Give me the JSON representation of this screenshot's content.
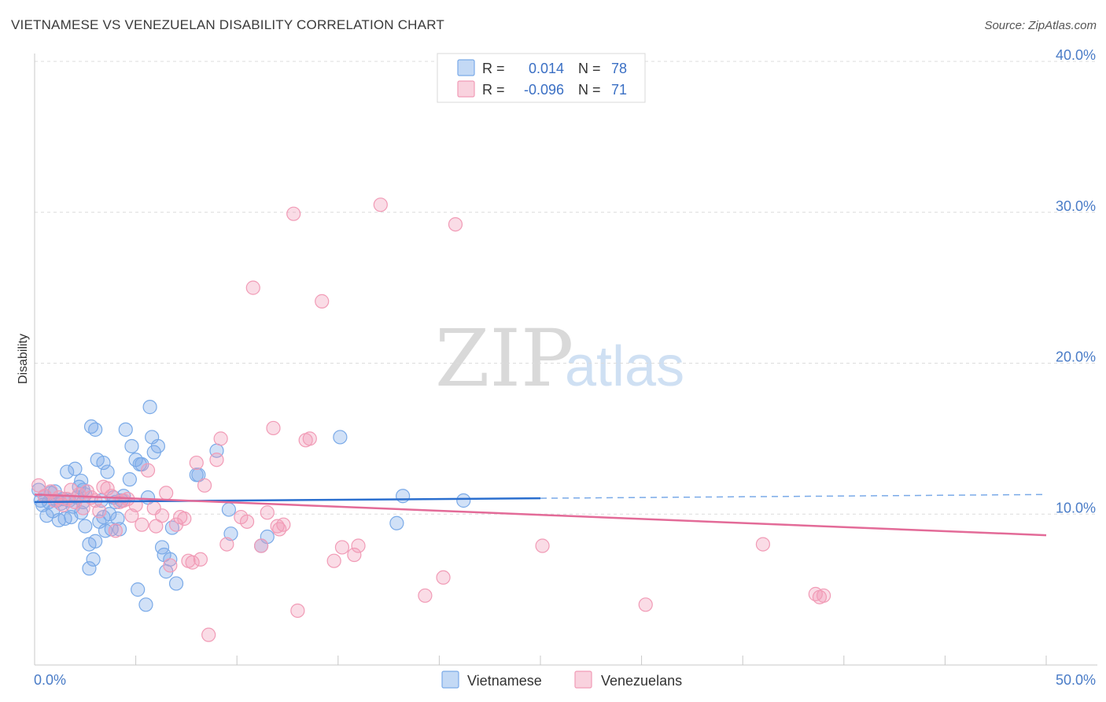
{
  "title": "VIETNAMESE VS VENEZUELAN DISABILITY CORRELATION CHART",
  "source": "Source: ZipAtlas.com",
  "chart_data": {
    "type": "scatter",
    "ylabel": "Disability",
    "xlim": [
      0,
      50
    ],
    "ylim": [
      0,
      40
    ],
    "x_ticks": [
      {
        "value": 0,
        "label": "0.0%"
      },
      {
        "value": 50,
        "label": "50.0%"
      }
    ],
    "y_ticks": [
      {
        "value": 10,
        "label": "10.0%"
      },
      {
        "value": 20,
        "label": "20.0%"
      },
      {
        "value": 30,
        "label": "30.0%"
      },
      {
        "value": 40,
        "label": "40.0%"
      }
    ],
    "legend": {
      "placement": "top-center",
      "entries": [
        {
          "r_label": "R =",
          "r_value": "0.014",
          "n_label": "N =",
          "n_value": "78",
          "color": "#7aaae8"
        },
        {
          "r_label": "R =",
          "r_value": "-0.096",
          "n_label": "N =",
          "n_value": "71",
          "color": "#f19bb6"
        }
      ]
    },
    "series": [
      {
        "name": "Vietnamese",
        "color": "#7aaae8",
        "line_color": "#2b6fcf",
        "trend": {
          "x0": 0,
          "y0": 10.8,
          "x1": 25,
          "y1": 11.05,
          "x_dash_end": 50,
          "y_dash_end": 11.3
        },
        "points": [
          [
            0.2,
            11.6
          ],
          [
            0.3,
            10.9
          ],
          [
            0.4,
            10.6
          ],
          [
            0.5,
            11.2
          ],
          [
            0.6,
            9.9
          ],
          [
            0.7,
            10.8
          ],
          [
            0.8,
            11.4
          ],
          [
            0.9,
            10.2
          ],
          [
            1.0,
            11.5
          ],
          [
            1.1,
            10.9
          ],
          [
            1.2,
            9.6
          ],
          [
            1.3,
            10.7
          ],
          [
            1.4,
            11.0
          ],
          [
            1.5,
            9.7
          ],
          [
            1.6,
            12.8
          ],
          [
            1.7,
            10.9
          ],
          [
            1.8,
            9.8
          ],
          [
            1.9,
            10.5
          ],
          [
            2.0,
            13.0
          ],
          [
            2.1,
            11.1
          ],
          [
            2.2,
            11.8
          ],
          [
            2.3,
            12.2
          ],
          [
            2.4,
            10.8
          ],
          [
            2.5,
            11.3
          ],
          [
            2.3,
            10.1
          ],
          [
            2.4,
            11.6
          ],
          [
            2.5,
            9.2
          ],
          [
            2.7,
            6.4
          ],
          [
            2.7,
            8.0
          ],
          [
            2.8,
            15.8
          ],
          [
            2.9,
            7.0
          ],
          [
            3.0,
            15.6
          ],
          [
            3.0,
            8.2
          ],
          [
            3.1,
            13.6
          ],
          [
            3.2,
            9.5
          ],
          [
            3.3,
            10.9
          ],
          [
            3.4,
            9.8
          ],
          [
            3.4,
            13.4
          ],
          [
            3.5,
            8.9
          ],
          [
            3.6,
            12.8
          ],
          [
            3.7,
            10.0
          ],
          [
            3.8,
            9.0
          ],
          [
            3.9,
            11.1
          ],
          [
            4.0,
            10.8
          ],
          [
            4.1,
            9.7
          ],
          [
            4.2,
            9.0
          ],
          [
            4.3,
            10.9
          ],
          [
            4.4,
            11.2
          ],
          [
            4.5,
            15.6
          ],
          [
            4.7,
            12.3
          ],
          [
            4.8,
            14.5
          ],
          [
            5.0,
            13.6
          ],
          [
            5.1,
            5.0
          ],
          [
            5.2,
            13.3
          ],
          [
            5.3,
            13.3
          ],
          [
            5.5,
            4.0
          ],
          [
            5.6,
            11.1
          ],
          [
            5.7,
            17.1
          ],
          [
            5.8,
            15.1
          ],
          [
            5.9,
            14.1
          ],
          [
            6.1,
            14.5
          ],
          [
            6.3,
            7.8
          ],
          [
            6.4,
            7.3
          ],
          [
            6.5,
            6.2
          ],
          [
            6.7,
            7.0
          ],
          [
            6.8,
            9.1
          ],
          [
            7.0,
            5.4
          ],
          [
            8.0,
            12.6
          ],
          [
            8.1,
            12.6
          ],
          [
            9.0,
            14.2
          ],
          [
            9.6,
            10.3
          ],
          [
            9.7,
            8.7
          ],
          [
            11.2,
            7.9
          ],
          [
            11.5,
            8.5
          ],
          [
            15.1,
            15.1
          ],
          [
            18.2,
            11.2
          ],
          [
            17.9,
            9.4
          ],
          [
            21.2,
            10.9
          ]
        ]
      },
      {
        "name": "Venezuelans",
        "color": "#f19bb6",
        "line_color": "#e36b98",
        "trend": {
          "x0": 0,
          "y0": 11.3,
          "x1": 50,
          "y1": 8.6
        },
        "points": [
          [
            0.2,
            11.9
          ],
          [
            0.5,
            11.2
          ],
          [
            0.8,
            11.5
          ],
          [
            1.0,
            10.9
          ],
          [
            1.2,
            11.1
          ],
          [
            1.4,
            10.6
          ],
          [
            1.6,
            11.0
          ],
          [
            1.8,
            11.6
          ],
          [
            2.0,
            10.8
          ],
          [
            2.2,
            11.3
          ],
          [
            2.4,
            10.4
          ],
          [
            2.6,
            11.5
          ],
          [
            2.8,
            11.1
          ],
          [
            3.0,
            10.9
          ],
          [
            3.2,
            10.2
          ],
          [
            3.4,
            11.8
          ],
          [
            3.6,
            11.7
          ],
          [
            3.8,
            11.2
          ],
          [
            4.0,
            8.9
          ],
          [
            4.2,
            10.8
          ],
          [
            4.4,
            10.9
          ],
          [
            4.6,
            11.0
          ],
          [
            4.8,
            9.9
          ],
          [
            5.0,
            10.6
          ],
          [
            5.3,
            9.3
          ],
          [
            5.6,
            12.9
          ],
          [
            5.9,
            10.4
          ],
          [
            6.0,
            9.2
          ],
          [
            6.3,
            9.9
          ],
          [
            6.5,
            11.4
          ],
          [
            6.7,
            6.6
          ],
          [
            7.0,
            9.3
          ],
          [
            7.2,
            9.8
          ],
          [
            7.4,
            9.7
          ],
          [
            7.6,
            6.9
          ],
          [
            7.8,
            6.8
          ],
          [
            8.0,
            13.4
          ],
          [
            8.2,
            7.0
          ],
          [
            8.4,
            11.9
          ],
          [
            8.6,
            2.0
          ],
          [
            9.0,
            13.6
          ],
          [
            9.2,
            15.0
          ],
          [
            9.5,
            8.0
          ],
          [
            10.2,
            9.8
          ],
          [
            10.5,
            9.5
          ],
          [
            10.8,
            25.0
          ],
          [
            11.2,
            7.9
          ],
          [
            11.5,
            10.1
          ],
          [
            11.8,
            15.7
          ],
          [
            12.0,
            9.2
          ],
          [
            12.3,
            9.3
          ],
          [
            12.8,
            29.9
          ],
          [
            13.0,
            3.6
          ],
          [
            13.4,
            14.9
          ],
          [
            13.6,
            15.0
          ],
          [
            14.2,
            24.1
          ],
          [
            14.8,
            6.9
          ],
          [
            15.2,
            7.8
          ],
          [
            15.8,
            7.3
          ],
          [
            16.0,
            7.9
          ],
          [
            17.1,
            30.5
          ],
          [
            19.3,
            4.6
          ],
          [
            20.2,
            5.8
          ],
          [
            20.8,
            29.2
          ],
          [
            25.1,
            7.9
          ],
          [
            30.2,
            4.0
          ],
          [
            36.0,
            8.0
          ],
          [
            38.6,
            4.7
          ],
          [
            38.8,
            4.5
          ],
          [
            39.0,
            4.6
          ],
          [
            12.1,
            9.0
          ]
        ]
      }
    ]
  },
  "bottom_legend": [
    "Vietnamese",
    "Venezuelans"
  ],
  "watermark": {
    "zip": "ZIP",
    "atlas": "atlas"
  }
}
